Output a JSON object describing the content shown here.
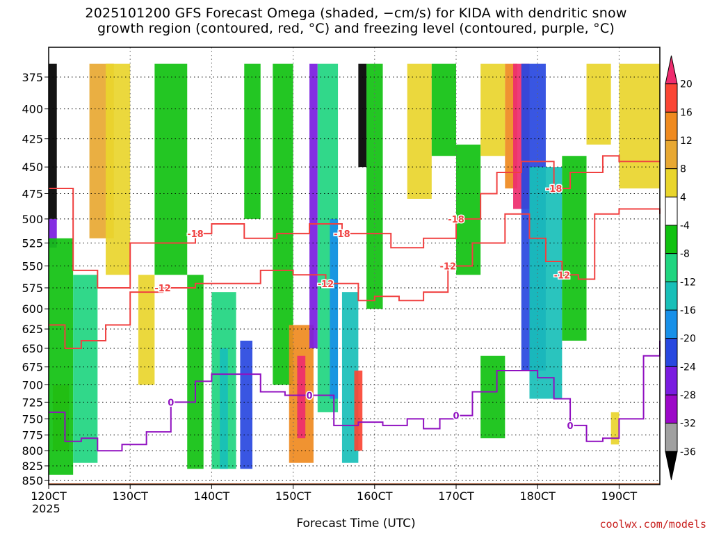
{
  "title_line1": "2025101200 GFS Forecast Omega (shaded, −cm/s) for KIDA with dendritic snow",
  "title_line2": "growth region (contoured, red, °C) and freezing level (contoured, purple, °C)",
  "credit": "coolwx.com/models",
  "chart_data": {
    "type": "heatmap",
    "xlabel": "Forecast Time (UTC)",
    "ylabel": "",
    "x_ticks": [
      "120CT",
      "130CT",
      "140CT",
      "150CT",
      "160CT",
      "170CT",
      "180CT",
      "190CT"
    ],
    "x_tick_sub": "2025",
    "x_tick_values": [
      12,
      13,
      14,
      15,
      16,
      17,
      18,
      19
    ],
    "xlim": [
      12,
      19.5
    ],
    "y_ticks": [
      375,
      400,
      425,
      450,
      475,
      500,
      525,
      550,
      575,
      600,
      625,
      650,
      675,
      700,
      725,
      750,
      775,
      800,
      825,
      850
    ],
    "ylim": [
      353,
      857
    ],
    "y_scale": "log-pressure",
    "grid": true,
    "colorbar": {
      "levels": [
        20,
        16,
        12,
        8,
        4,
        -4,
        -8,
        -12,
        -16,
        -20,
        -24,
        -28,
        -32,
        -36
      ],
      "colors": [
        "#ee2c6e",
        "#fa4534",
        "#ef8a1f",
        "#e8a832",
        "#e9d52c",
        "#ffffff",
        "#10c110",
        "#20d580",
        "#18bfb8",
        "#1890e8",
        "#2848e0",
        "#7a1ce0",
        "#9c08c8",
        "#a0a0a0",
        "#000000"
      ],
      "labels": [
        "20",
        "16",
        "12",
        "8",
        "4",
        "-4",
        "-8",
        "-12",
        "-16",
        "-20",
        "-24",
        "-28",
        "-32",
        "-36"
      ]
    },
    "omega_bands": [
      {
        "x": [
          12.0,
          12.1
        ],
        "p": [
          365,
          500
        ],
        "color": "#000000"
      },
      {
        "x": [
          12.0,
          12.1
        ],
        "p": [
          500,
          530
        ],
        "color": "#7a1ce0"
      },
      {
        "x": [
          12.05,
          12.25
        ],
        "p": [
          700,
          800
        ],
        "color": "#ef8a1f"
      },
      {
        "x": [
          12.0,
          12.3
        ],
        "p": [
          520,
          840
        ],
        "color": "#10c110"
      },
      {
        "x": [
          12.3,
          12.6
        ],
        "p": [
          560,
          820
        ],
        "color": "#20d580"
      },
      {
        "x": [
          12.5,
          12.8
        ],
        "p": [
          365,
          520
        ],
        "color": "#e8a832"
      },
      {
        "x": [
          12.7,
          13.0
        ],
        "p": [
          365,
          560
        ],
        "color": "#e9d52c"
      },
      {
        "x": [
          13.1,
          13.3
        ],
        "p": [
          560,
          700
        ],
        "color": "#e9d52c"
      },
      {
        "x": [
          13.3,
          13.7
        ],
        "p": [
          365,
          560
        ],
        "color": "#10c110"
      },
      {
        "x": [
          13.7,
          13.9
        ],
        "p": [
          560,
          830
        ],
        "color": "#10c110"
      },
      {
        "x": [
          14.0,
          14.3
        ],
        "p": [
          580,
          830
        ],
        "color": "#20d580"
      },
      {
        "x": [
          14.1,
          14.2
        ],
        "p": [
          650,
          830
        ],
        "color": "#18bfb8"
      },
      {
        "x": [
          14.35,
          14.5
        ],
        "p": [
          640,
          830
        ],
        "color": "#2848e0"
      },
      {
        "x": [
          14.4,
          14.6
        ],
        "p": [
          365,
          500
        ],
        "color": "#10c110"
      },
      {
        "x": [
          14.75,
          15.0
        ],
        "p": [
          365,
          700
        ],
        "color": "#10c110"
      },
      {
        "x": [
          14.95,
          15.25
        ],
        "p": [
          620,
          820
        ],
        "color": "#ef8a1f"
      },
      {
        "x": [
          15.05,
          15.15
        ],
        "p": [
          660,
          780
        ],
        "color": "#ee2c6e"
      },
      {
        "x": [
          15.2,
          15.3
        ],
        "p": [
          365,
          650
        ],
        "color": "#7a1ce0"
      },
      {
        "x": [
          15.3,
          15.55
        ],
        "p": [
          365,
          740
        ],
        "color": "#20d580"
      },
      {
        "x": [
          15.45,
          15.55
        ],
        "p": [
          500,
          720
        ],
        "color": "#1890e8"
      },
      {
        "x": [
          15.6,
          15.8
        ],
        "p": [
          580,
          820
        ],
        "color": "#18bfb8"
      },
      {
        "x": [
          15.75,
          15.85
        ],
        "p": [
          680,
          800
        ],
        "color": "#fa4534"
      },
      {
        "x": [
          15.8,
          15.9
        ],
        "p": [
          365,
          450
        ],
        "color": "#000000"
      },
      {
        "x": [
          15.9,
          16.1
        ],
        "p": [
          365,
          600
        ],
        "color": "#10c110"
      },
      {
        "x": [
          16.4,
          16.7
        ],
        "p": [
          365,
          480
        ],
        "color": "#e9d52c"
      },
      {
        "x": [
          16.7,
          17.0
        ],
        "p": [
          365,
          440
        ],
        "color": "#10c110"
      },
      {
        "x": [
          17.0,
          17.3
        ],
        "p": [
          430,
          560
        ],
        "color": "#10c110"
      },
      {
        "x": [
          17.3,
          17.6
        ],
        "p": [
          365,
          440
        ],
        "color": "#e9d52c"
      },
      {
        "x": [
          17.6,
          17.75
        ],
        "p": [
          365,
          470
        ],
        "color": "#ef8a1f"
      },
      {
        "x": [
          17.7,
          17.9
        ],
        "p": [
          365,
          490
        ],
        "color": "#ee2c6e"
      },
      {
        "x": [
          17.8,
          18.1
        ],
        "p": [
          365,
          680
        ],
        "color": "#2848e0"
      },
      {
        "x": [
          17.9,
          18.3
        ],
        "p": [
          450,
          720
        ],
        "color": "#18bfb8"
      },
      {
        "x": [
          18.3,
          18.6
        ],
        "p": [
          440,
          640
        ],
        "color": "#10c110"
      },
      {
        "x": [
          17.3,
          17.6
        ],
        "p": [
          660,
          780
        ],
        "color": "#10c110"
      },
      {
        "x": [
          18.6,
          18.9
        ],
        "p": [
          365,
          430
        ],
        "color": "#e9d52c"
      },
      {
        "x": [
          19.0,
          19.5
        ],
        "p": [
          365,
          470
        ],
        "color": "#e9d52c"
      },
      {
        "x": [
          18.9,
          19.0
        ],
        "p": [
          740,
          790
        ],
        "color": "#e9d52c"
      }
    ],
    "series": [
      {
        "name": "-18",
        "color": "#f04040",
        "line_labels": [
          "-18",
          "-18",
          "-18",
          "-18"
        ],
        "x": [
          12.0,
          12.3,
          12.6,
          13.0,
          13.4,
          13.8,
          14.0,
          14.4,
          14.8,
          15.2,
          15.6,
          15.9,
          16.2,
          16.6,
          17.0,
          17.3,
          17.5,
          17.8,
          18.0,
          18.2,
          18.4,
          18.8,
          19.0,
          19.5
        ],
        "y": [
          470,
          555,
          575,
          525,
          525,
          515,
          505,
          520,
          515,
          505,
          515,
          515,
          530,
          520,
          500,
          475,
          455,
          445,
          445,
          470,
          455,
          440,
          445,
          445
        ]
      },
      {
        "name": "-12",
        "color": "#f04040",
        "line_labels": [
          "-12",
          "-12",
          "-12",
          "-12"
        ],
        "x": [
          12.0,
          12.2,
          12.4,
          12.7,
          13.0,
          13.4,
          13.8,
          14.2,
          14.6,
          15.0,
          15.4,
          15.8,
          16.0,
          16.3,
          16.6,
          16.9,
          17.2,
          17.6,
          17.9,
          18.1,
          18.3,
          18.5,
          18.7,
          19.0,
          19.5
        ],
        "y": [
          620,
          650,
          640,
          620,
          580,
          575,
          570,
          570,
          555,
          560,
          570,
          590,
          585,
          590,
          580,
          550,
          525,
          495,
          520,
          545,
          560,
          565,
          495,
          490,
          495
        ]
      },
      {
        "name": "0",
        "color": "#9010c0",
        "line_labels": [
          "0",
          "0",
          "0",
          "0"
        ],
        "x": [
          12.0,
          12.2,
          12.4,
          12.6,
          12.9,
          13.2,
          13.5,
          13.8,
          14.0,
          14.3,
          14.6,
          14.9,
          15.2,
          15.5,
          15.8,
          16.1,
          16.4,
          16.6,
          16.8,
          17.0,
          17.2,
          17.5,
          17.8,
          18.0,
          18.2,
          18.4,
          18.6,
          18.8,
          19.0,
          19.3,
          19.5
        ],
        "y": [
          740,
          785,
          780,
          800,
          790,
          770,
          725,
          695,
          685,
          685,
          710,
          715,
          715,
          760,
          755,
          760,
          750,
          765,
          750,
          745,
          710,
          680,
          680,
          690,
          720,
          760,
          785,
          780,
          750,
          660,
          640
        ]
      }
    ]
  }
}
